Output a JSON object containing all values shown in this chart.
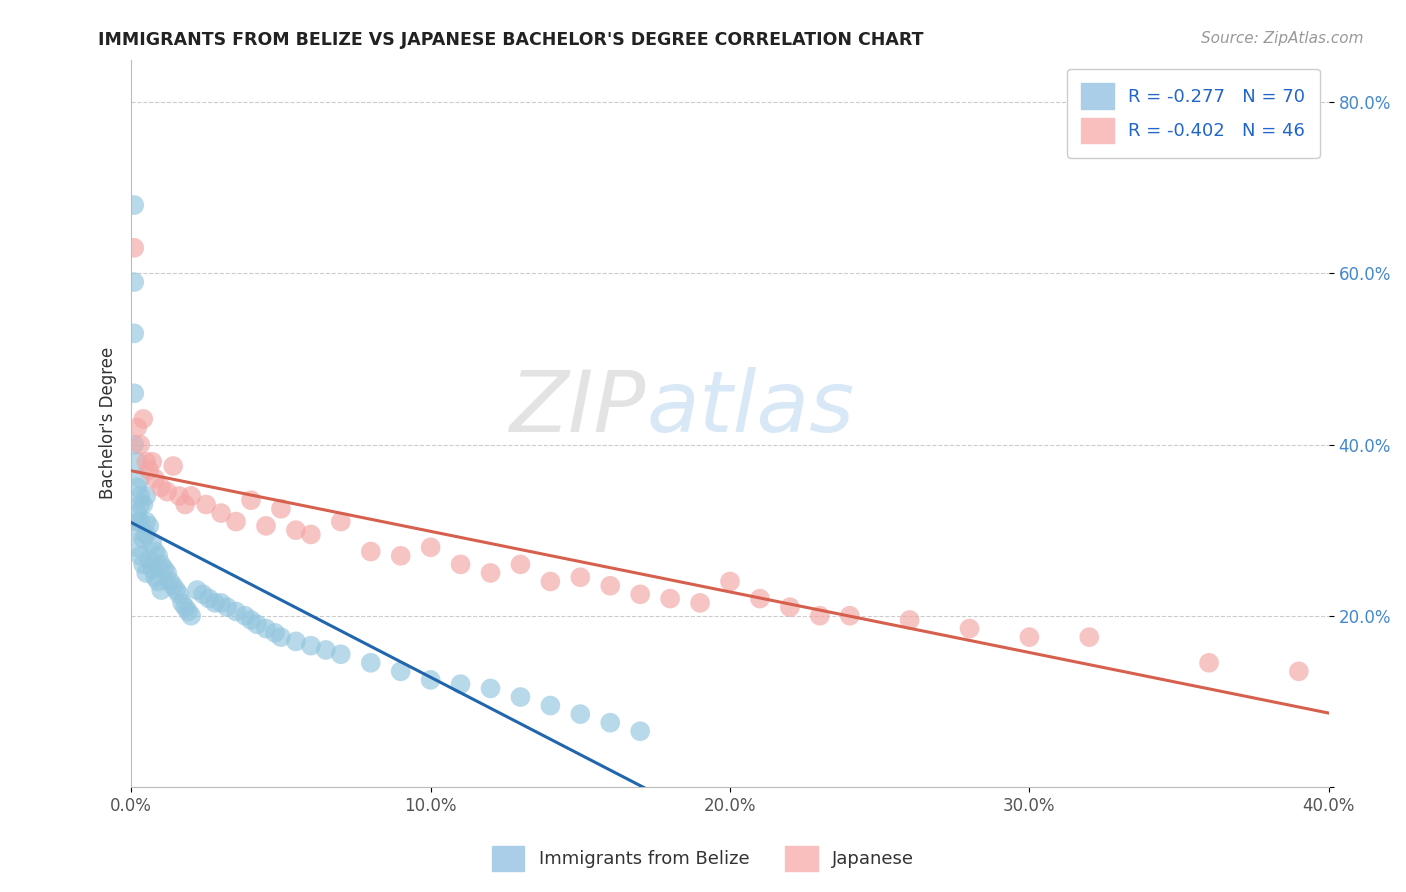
{
  "title": "IMMIGRANTS FROM BELIZE VS JAPANESE BACHELOR'S DEGREE CORRELATION CHART",
  "source_text": "Source: ZipAtlas.com",
  "ylabel": "Bachelor's Degree",
  "legend_labels": [
    "Immigrants from Belize",
    "Japanese"
  ],
  "r_belize": -0.277,
  "n_belize": 70,
  "r_japanese": -0.402,
  "n_japanese": 46,
  "xmin": 0.0,
  "xmax": 0.4,
  "ymin": 0.0,
  "ymax": 0.85,
  "x_ticks": [
    0.0,
    0.1,
    0.2,
    0.3,
    0.4
  ],
  "x_tick_labels": [
    "0.0%",
    "10.0%",
    "20.0%",
    "30.0%",
    "40.0%"
  ],
  "y_ticks": [
    0.0,
    0.2,
    0.4,
    0.6,
    0.8
  ],
  "y_tick_labels": [
    "",
    "20.0%",
    "40.0%",
    "60.0%",
    "80.0%"
  ],
  "color_belize": "#92c5de",
  "color_japanese": "#f4a5a5",
  "line_color_belize": "#2166ac",
  "line_color_japanese": "#d6604d",
  "belize_x": [
    0.001,
    0.001,
    0.001,
    0.001,
    0.001,
    0.002,
    0.002,
    0.002,
    0.002,
    0.002,
    0.003,
    0.003,
    0.003,
    0.003,
    0.004,
    0.004,
    0.004,
    0.005,
    0.005,
    0.005,
    0.006,
    0.006,
    0.007,
    0.007,
    0.008,
    0.008,
    0.009,
    0.009,
    0.01,
    0.01,
    0.011,
    0.012,
    0.013,
    0.014,
    0.015,
    0.016,
    0.017,
    0.018,
    0.019,
    0.02,
    0.022,
    0.024,
    0.026,
    0.028,
    0.03,
    0.032,
    0.035,
    0.038,
    0.04,
    0.042,
    0.045,
    0.048,
    0.05,
    0.055,
    0.06,
    0.065,
    0.07,
    0.08,
    0.09,
    0.1,
    0.11,
    0.12,
    0.13,
    0.14,
    0.15,
    0.16,
    0.17,
    0.002,
    0.003,
    0.005
  ],
  "belize_y": [
    0.68,
    0.59,
    0.53,
    0.46,
    0.4,
    0.35,
    0.32,
    0.31,
    0.3,
    0.28,
    0.34,
    0.33,
    0.31,
    0.27,
    0.33,
    0.29,
    0.26,
    0.31,
    0.295,
    0.25,
    0.305,
    0.265,
    0.285,
    0.255,
    0.275,
    0.245,
    0.27,
    0.24,
    0.26,
    0.23,
    0.255,
    0.25,
    0.24,
    0.235,
    0.23,
    0.225,
    0.215,
    0.21,
    0.205,
    0.2,
    0.23,
    0.225,
    0.22,
    0.215,
    0.215,
    0.21,
    0.205,
    0.2,
    0.195,
    0.19,
    0.185,
    0.18,
    0.175,
    0.17,
    0.165,
    0.16,
    0.155,
    0.145,
    0.135,
    0.125,
    0.12,
    0.115,
    0.105,
    0.095,
    0.085,
    0.075,
    0.065,
    0.38,
    0.36,
    0.34
  ],
  "japanese_x": [
    0.001,
    0.002,
    0.003,
    0.004,
    0.005,
    0.006,
    0.007,
    0.008,
    0.01,
    0.012,
    0.014,
    0.016,
    0.018,
    0.02,
    0.025,
    0.03,
    0.035,
    0.04,
    0.045,
    0.05,
    0.055,
    0.06,
    0.07,
    0.08,
    0.09,
    0.1,
    0.11,
    0.12,
    0.13,
    0.14,
    0.15,
    0.16,
    0.17,
    0.18,
    0.19,
    0.2,
    0.21,
    0.22,
    0.23,
    0.24,
    0.26,
    0.28,
    0.3,
    0.32,
    0.36,
    0.39
  ],
  "japanese_y": [
    0.63,
    0.42,
    0.4,
    0.43,
    0.38,
    0.37,
    0.38,
    0.36,
    0.35,
    0.345,
    0.375,
    0.34,
    0.33,
    0.34,
    0.33,
    0.32,
    0.31,
    0.335,
    0.305,
    0.325,
    0.3,
    0.295,
    0.31,
    0.275,
    0.27,
    0.28,
    0.26,
    0.25,
    0.26,
    0.24,
    0.245,
    0.235,
    0.225,
    0.22,
    0.215,
    0.24,
    0.22,
    0.21,
    0.2,
    0.2,
    0.195,
    0.185,
    0.175,
    0.175,
    0.145,
    0.135
  ]
}
